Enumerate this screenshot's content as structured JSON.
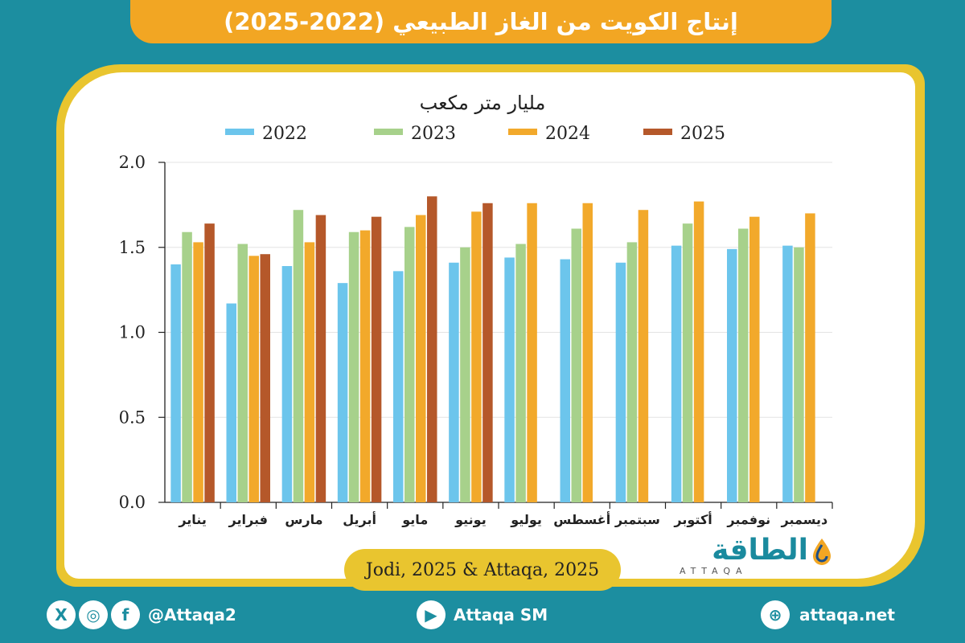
{
  "header": {
    "title": "إنتاج الكويت من الغاز الطبيعي (2022-2025)"
  },
  "source": "Jodi, 2025 & Attaqa, 2025",
  "logo": {
    "arabic": "الطاقة",
    "english": "ATTAQA"
  },
  "footer": {
    "social_handle": "@Attaqa2",
    "youtube": "Attaqa SM",
    "website": "attaqa.net"
  },
  "colors": {
    "c2022": "#6cc5ec",
    "c2023": "#a7d18b",
    "c2024": "#f2a92b",
    "c2025": "#b5582a"
  },
  "chart_data": {
    "type": "bar",
    "title": "مليار متر مكعب",
    "categories": [
      "يناير",
      "فبراير",
      "مارس",
      "أبريل",
      "مايو",
      "يونيو",
      "يوليو",
      "أغسطس",
      "سبتمبر",
      "أكتوبر",
      "نوفمبر",
      "ديسمبر"
    ],
    "series": [
      {
        "name": "2022",
        "values": [
          1.4,
          1.17,
          1.39,
          1.29,
          1.36,
          1.41,
          1.44,
          1.43,
          1.41,
          1.51,
          1.49,
          1.51
        ]
      },
      {
        "name": "2023",
        "values": [
          1.59,
          1.52,
          1.72,
          1.59,
          1.62,
          1.5,
          1.52,
          1.61,
          1.53,
          1.64,
          1.61,
          1.5
        ]
      },
      {
        "name": "2024",
        "values": [
          1.53,
          1.45,
          1.53,
          1.6,
          1.69,
          1.71,
          1.76,
          1.76,
          1.72,
          1.77,
          1.68,
          1.7
        ]
      },
      {
        "name": "2025",
        "values": [
          1.64,
          1.46,
          1.69,
          1.68,
          1.8,
          1.76,
          null,
          null,
          null,
          null,
          null,
          null
        ]
      }
    ],
    "ylim": [
      0,
      2.0
    ],
    "yticks": [
      "0.0",
      "0.5",
      "1.0",
      "1.5",
      "2.0"
    ],
    "legend_position": "top",
    "grid": true
  }
}
